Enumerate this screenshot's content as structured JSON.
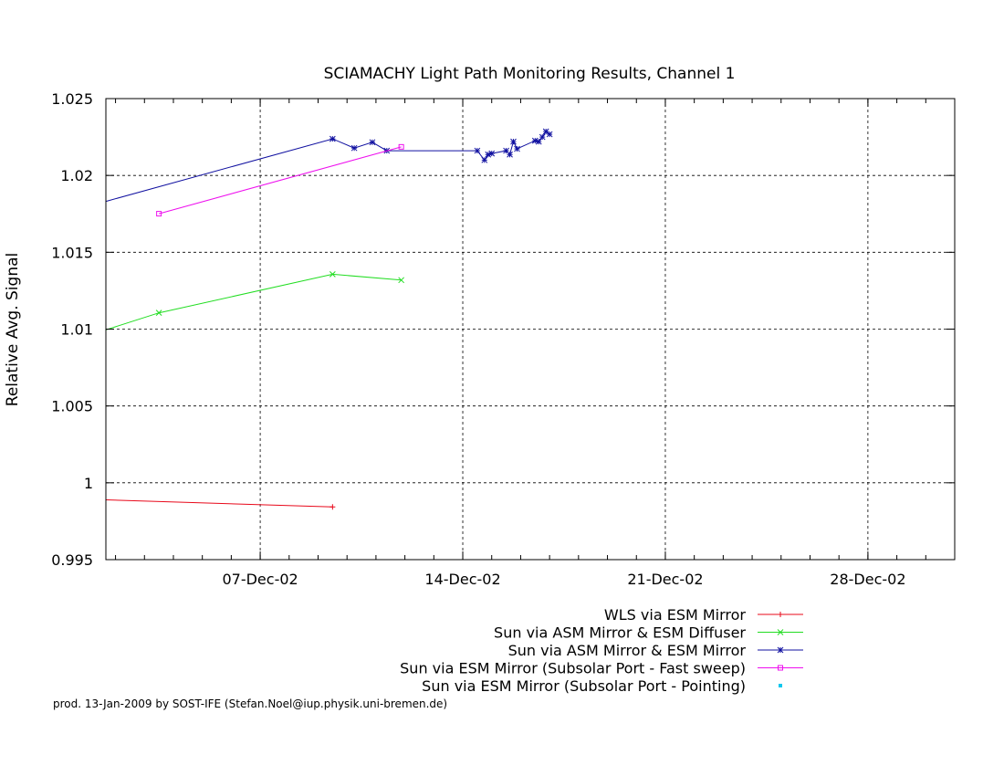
{
  "chart_data": {
    "type": "line",
    "title": "SCIAMACHY Light Path Monitoring Results, Channel 1",
    "ylabel": "Relative Avg. Signal",
    "xlabel": "",
    "xlim": [
      "2002-12-01 16:00",
      "2002-12-31 00:00"
    ],
    "ylim": [
      0.995,
      1.025
    ],
    "grid": true,
    "legend_position": "bottom-right",
    "x_ticks": [
      {
        "date": "2002-12-07 00:00",
        "label": "07-Dec-02"
      },
      {
        "date": "2002-12-14 00:00",
        "label": "14-Dec-02"
      },
      {
        "date": "2002-12-21 00:00",
        "label": "21-Dec-02"
      },
      {
        "date": "2002-12-28 00:00",
        "label": "28-Dec-02"
      }
    ],
    "y_ticks": [
      {
        "value": 0.995,
        "label": "0.995"
      },
      {
        "value": 1.0,
        "label": "1"
      },
      {
        "value": 1.005,
        "label": "1.005"
      },
      {
        "value": 1.01,
        "label": "1.01"
      },
      {
        "value": 1.015,
        "label": "1.015"
      },
      {
        "value": 1.02,
        "label": "1.02"
      },
      {
        "value": 1.025,
        "label": "1.025"
      }
    ],
    "series": [
      {
        "name": "WLS via ESM Mirror",
        "color": "#e8081a",
        "marker": "plus",
        "points": [
          [
            "2002-12-01 16:00",
            0.99889
          ],
          [
            "2002-12-09 12:00",
            0.99843
          ]
        ]
      },
      {
        "name": "Sun via ASM Mirror & ESM Diffuser",
        "color": "#22dd22",
        "marker": "cross",
        "points": [
          [
            "2002-12-01 16:00",
            1.00995
          ],
          [
            "2002-12-03 12:00",
            1.01106
          ],
          [
            "2002-12-09 12:00",
            1.01357
          ],
          [
            "2002-12-11 21:00",
            1.01319
          ]
        ]
      },
      {
        "name": "Sun via ASM Mirror & ESM Mirror",
        "color": "#1010a0",
        "marker": "star",
        "points": [
          [
            "2002-12-01 16:00",
            1.01831
          ],
          [
            "2002-12-09 12:00",
            1.02238
          ],
          [
            "2002-12-10 06:00",
            1.02178
          ],
          [
            "2002-12-10 21:00",
            1.02216
          ],
          [
            "2002-12-11 09:00",
            1.02161
          ],
          [
            "2002-12-14 12:00",
            1.02161
          ],
          [
            "2002-12-14 18:00",
            1.021
          ],
          [
            "2002-12-14 21:00",
            1.02136
          ],
          [
            "2002-12-15 00:00",
            1.02143
          ],
          [
            "2002-12-15 12:00",
            1.02161
          ],
          [
            "2002-12-15 15:00",
            1.02136
          ],
          [
            "2002-12-15 18:00",
            1.0222
          ],
          [
            "2002-12-15 21:00",
            1.02173
          ],
          [
            "2002-12-16 12:00",
            1.02226
          ],
          [
            "2002-12-16 15:00",
            1.0222
          ],
          [
            "2002-12-16 18:00",
            1.0225
          ],
          [
            "2002-12-16 21:00",
            1.02286
          ],
          [
            "2002-12-17 00:00",
            1.02268
          ]
        ]
      },
      {
        "name": "Sun via ESM Mirror (Subsolar Port - Fast sweep)",
        "color": "#ee10ee",
        "marker": "square",
        "points": [
          [
            "2002-12-03 12:00",
            1.01751
          ],
          [
            "2002-12-11 21:00",
            1.02186
          ]
        ]
      },
      {
        "name": "Sun via ESM Mirror (Subsolar Port - Pointing)",
        "color": "#10c8ee",
        "marker": "dot",
        "points": []
      }
    ]
  },
  "footer": "prod. 13-Jan-2009 by SOST-IFE (Stefan.Noel@iup.physik.uni-bremen.de)"
}
